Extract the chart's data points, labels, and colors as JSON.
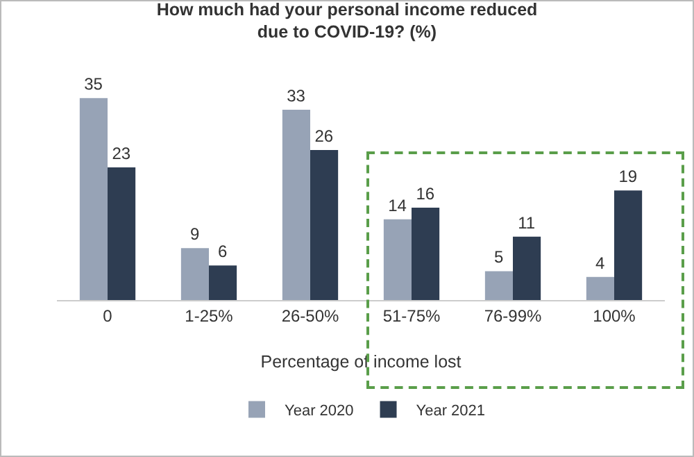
{
  "chart_data": {
    "type": "bar",
    "title": "How much had your personal income reduced\ndue to COVID-19? (%)",
    "xlabel": "Percentage of income lost",
    "categories": [
      "0",
      "1-25%",
      "26-50%",
      "51-75%",
      "76-99%",
      "100%"
    ],
    "series": [
      {
        "name": "Year 2020",
        "color": "#97a3b6",
        "values": [
          35,
          9,
          33,
          14,
          5,
          4
        ]
      },
      {
        "name": "Year 2021",
        "color": "#2e3d52",
        "values": [
          23,
          6,
          26,
          16,
          11,
          19
        ]
      }
    ],
    "data_labels": true,
    "legend": "bottom",
    "grid": false
  }
}
